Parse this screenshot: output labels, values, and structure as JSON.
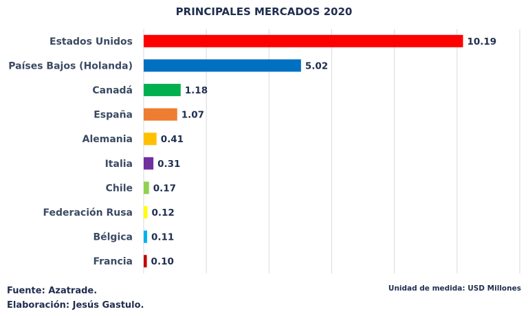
{
  "chart_data": {
    "type": "bar",
    "orientation": "horizontal",
    "title": "PRINCIPALES MERCADOS 2020",
    "categories": [
      "Estados Unidos",
      "Países Bajos (Holanda)",
      "Canadá",
      "España",
      "Alemania",
      "Italia",
      "Chile",
      "Federación Rusa",
      "Bélgica",
      "Francia"
    ],
    "values": [
      10.19,
      5.02,
      1.18,
      1.07,
      0.41,
      0.31,
      0.17,
      0.12,
      0.11,
      0.1
    ],
    "value_labels": [
      "10.19",
      "5.02",
      "1.18",
      "1.07",
      "0.41",
      "0.31",
      "0.17",
      "0.12",
      "0.11",
      "0.10"
    ],
    "colors": [
      "#ff0000",
      "#0070c0",
      "#00b050",
      "#ed7d31",
      "#ffc000",
      "#7030a0",
      "#92d050",
      "#ffff00",
      "#00b0f0",
      "#c00000"
    ],
    "xlim": [
      0,
      12
    ],
    "x_gridlines": [
      0,
      2,
      4,
      6,
      8,
      10,
      12
    ],
    "grid": true,
    "show_x_tick_labels": false,
    "legend": "none"
  },
  "footer": {
    "source": "Fuente: Azatrade.",
    "elaboration": "Elaboración: Jesús Gastulo.",
    "unit": "Unidad de medida: USD Millones"
  }
}
